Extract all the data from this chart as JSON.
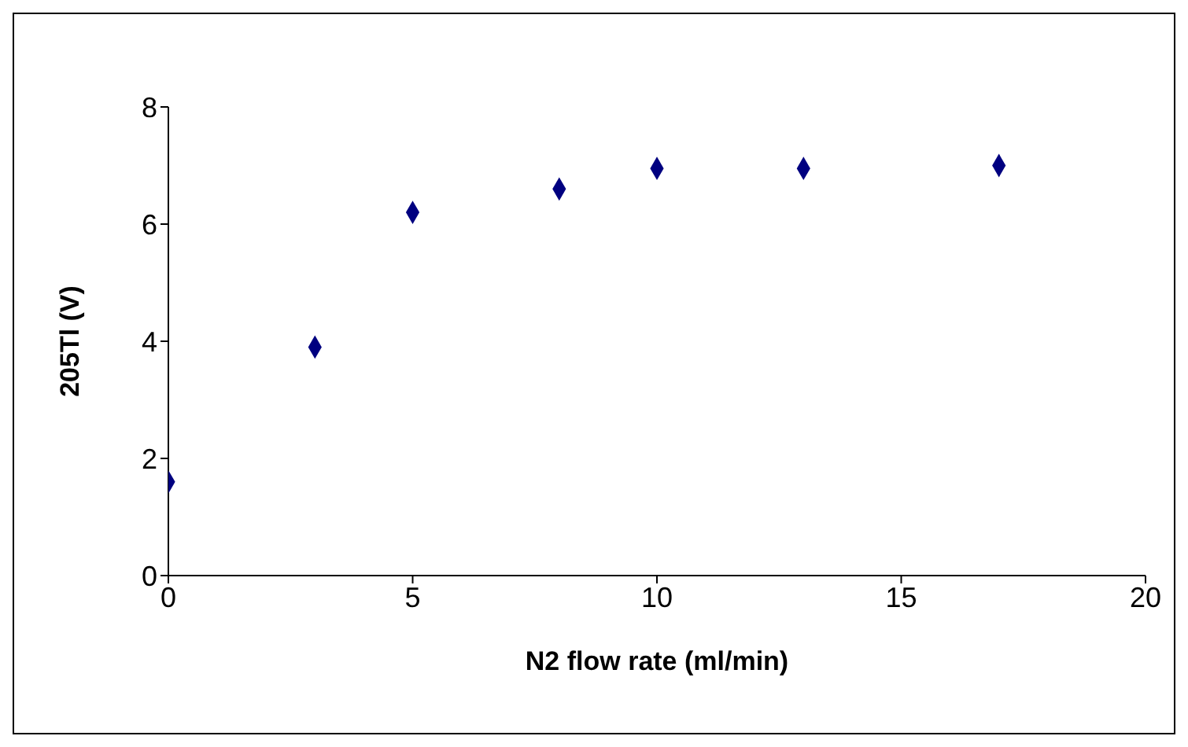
{
  "chart_data": {
    "type": "scatter",
    "xlabel": "N2 flow rate (ml/min)",
    "ylabel": "205Tl (V)",
    "x": [
      0,
      3,
      5,
      8,
      10,
      13,
      17
    ],
    "series": [
      {
        "color": "#000080",
        "values": [
          1.6,
          3.9,
          6.2,
          6.6,
          6.95,
          6.95,
          7.0
        ]
      }
    ],
    "xlim": [
      0,
      20
    ],
    "xticks": [
      0,
      5,
      10,
      15,
      20
    ],
    "ylim": [
      0,
      8
    ],
    "yticks": [
      0,
      2,
      4,
      6,
      8
    ],
    "grid": false,
    "legend": false,
    "marker": "diamond"
  }
}
